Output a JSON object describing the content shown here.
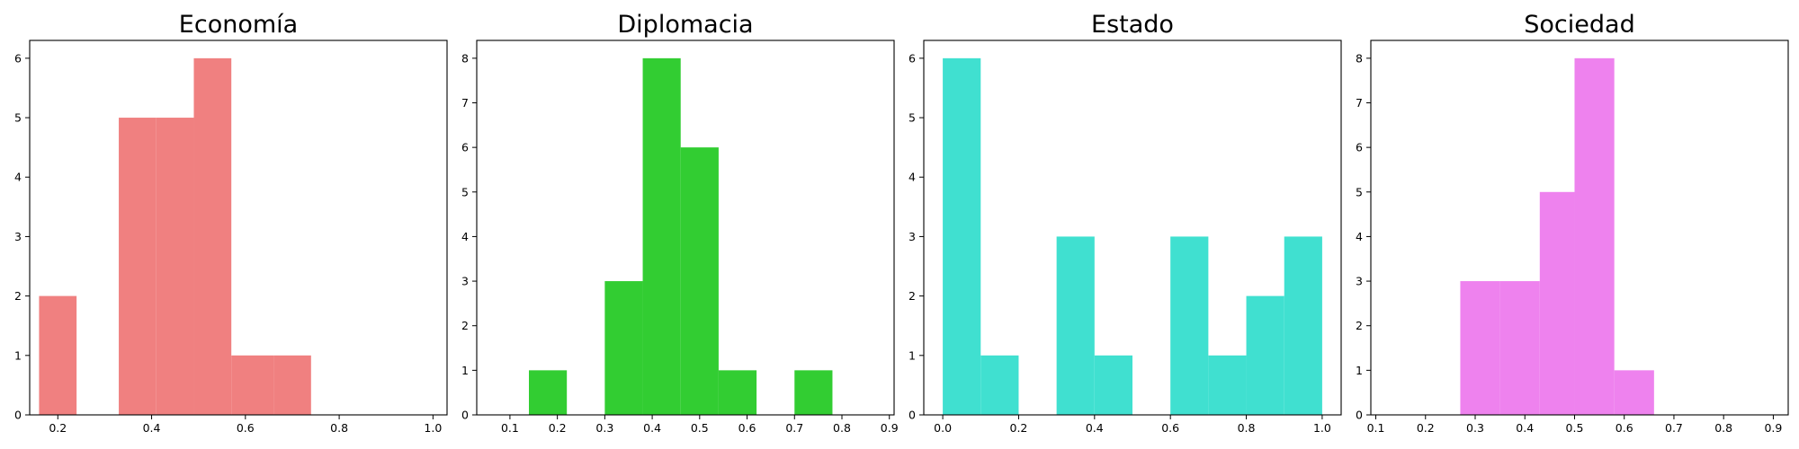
{
  "chart_data": [
    {
      "type": "bar",
      "title": "Economía",
      "color": "#F08080",
      "xlim": [
        0.14,
        1.03
      ],
      "ylim": [
        0,
        6.3
      ],
      "xticks": [
        0.2,
        0.4,
        0.6,
        0.8,
        1.0
      ],
      "xtick_labels": [
        "0.2",
        "0.4",
        "0.6",
        "0.8",
        "1.0"
      ],
      "yticks": [
        0,
        1,
        2,
        3,
        4,
        5,
        6
      ],
      "ytick_labels": [
        "0",
        "1",
        "2",
        "3",
        "4",
        "5",
        "6"
      ],
      "bins": [
        {
          "x0": 0.16,
          "x1": 0.24,
          "count": 2
        },
        {
          "x0": 0.24,
          "x1": 0.33,
          "count": 0
        },
        {
          "x0": 0.33,
          "x1": 0.41,
          "count": 5
        },
        {
          "x0": 0.41,
          "x1": 0.49,
          "count": 5
        },
        {
          "x0": 0.49,
          "x1": 0.57,
          "count": 6
        },
        {
          "x0": 0.57,
          "x1": 0.66,
          "count": 1
        },
        {
          "x0": 0.66,
          "x1": 0.74,
          "count": 1
        }
      ]
    },
    {
      "type": "bar",
      "title": "Diplomacia",
      "color": "#32CD32",
      "xlim": [
        0.03,
        0.91
      ],
      "ylim": [
        0,
        8.4
      ],
      "xticks": [
        0.1,
        0.2,
        0.3,
        0.4,
        0.5,
        0.6,
        0.7,
        0.8,
        0.9
      ],
      "xtick_labels": [
        "0.1",
        "0.2",
        "0.3",
        "0.4",
        "0.5",
        "0.6",
        "0.7",
        "0.8",
        "0.9"
      ],
      "yticks": [
        0,
        1,
        2,
        3,
        4,
        5,
        6,
        7,
        8
      ],
      "ytick_labels": [
        "0",
        "1",
        "2",
        "3",
        "4",
        "5",
        "6",
        "7",
        "8"
      ],
      "bins": [
        {
          "x0": 0.14,
          "x1": 0.22,
          "count": 1
        },
        {
          "x0": 0.22,
          "x1": 0.3,
          "count": 0
        },
        {
          "x0": 0.3,
          "x1": 0.38,
          "count": 3
        },
        {
          "x0": 0.38,
          "x1": 0.46,
          "count": 8
        },
        {
          "x0": 0.46,
          "x1": 0.54,
          "count": 6
        },
        {
          "x0": 0.54,
          "x1": 0.62,
          "count": 1
        },
        {
          "x0": 0.62,
          "x1": 0.7,
          "count": 0
        },
        {
          "x0": 0.7,
          "x1": 0.78,
          "count": 1
        }
      ]
    },
    {
      "type": "bar",
      "title": "Estado",
      "color": "#40E0D0",
      "xlim": [
        -0.05,
        1.05
      ],
      "ylim": [
        0,
        6.3
      ],
      "xticks": [
        0.0,
        0.2,
        0.4,
        0.6,
        0.8,
        1.0
      ],
      "xtick_labels": [
        "0.0",
        "0.2",
        "0.4",
        "0.6",
        "0.8",
        "1.0"
      ],
      "yticks": [
        0,
        1,
        2,
        3,
        4,
        5,
        6
      ],
      "ytick_labels": [
        "0",
        "1",
        "2",
        "3",
        "4",
        "5",
        "6"
      ],
      "bins": [
        {
          "x0": 0.0,
          "x1": 0.1,
          "count": 6
        },
        {
          "x0": 0.1,
          "x1": 0.2,
          "count": 1
        },
        {
          "x0": 0.2,
          "x1": 0.3,
          "count": 0
        },
        {
          "x0": 0.3,
          "x1": 0.4,
          "count": 3
        },
        {
          "x0": 0.4,
          "x1": 0.5,
          "count": 1
        },
        {
          "x0": 0.5,
          "x1": 0.6,
          "count": 0
        },
        {
          "x0": 0.6,
          "x1": 0.7,
          "count": 3
        },
        {
          "x0": 0.7,
          "x1": 0.8,
          "count": 1
        },
        {
          "x0": 0.8,
          "x1": 0.9,
          "count": 2
        },
        {
          "x0": 0.9,
          "x1": 1.0,
          "count": 3
        }
      ]
    },
    {
      "type": "bar",
      "title": "Sociedad",
      "color": "#EE82EE",
      "xlim": [
        0.09,
        0.93
      ],
      "ylim": [
        0,
        8.4
      ],
      "xticks": [
        0.1,
        0.2,
        0.3,
        0.4,
        0.5,
        0.6,
        0.7,
        0.8,
        0.9
      ],
      "xtick_labels": [
        "0.1",
        "0.2",
        "0.3",
        "0.4",
        "0.5",
        "0.6",
        "0.7",
        "0.8",
        "0.9"
      ],
      "yticks": [
        0,
        1,
        2,
        3,
        4,
        5,
        6,
        7,
        8
      ],
      "ytick_labels": [
        "0",
        "1",
        "2",
        "3",
        "4",
        "5",
        "6",
        "7",
        "8"
      ],
      "bins": [
        {
          "x0": 0.27,
          "x1": 0.35,
          "count": 3
        },
        {
          "x0": 0.35,
          "x1": 0.43,
          "count": 3
        },
        {
          "x0": 0.43,
          "x1": 0.5,
          "count": 5
        },
        {
          "x0": 0.5,
          "x1": 0.58,
          "count": 8
        },
        {
          "x0": 0.58,
          "x1": 0.66,
          "count": 1
        }
      ]
    }
  ]
}
